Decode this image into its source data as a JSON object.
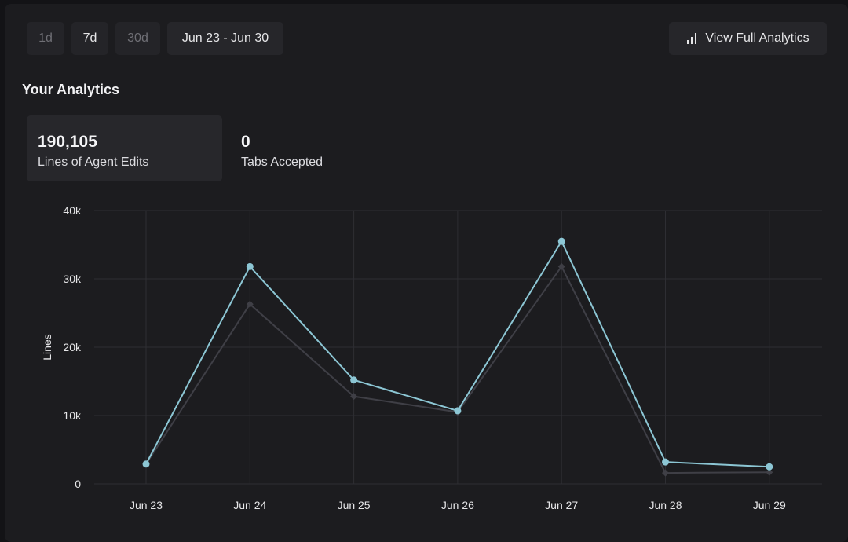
{
  "toolbar": {
    "ranges": [
      {
        "label": "1d",
        "active": false
      },
      {
        "label": "7d",
        "active": true
      },
      {
        "label": "30d",
        "active": false
      }
    ],
    "date_range": "Jun 23 - Jun 30",
    "full_analytics_label": "View Full Analytics",
    "full_analytics_icon": "bar-chart-icon"
  },
  "section_title": "Your Analytics",
  "stats": [
    {
      "value": "190,105",
      "label": "Lines of Agent Edits",
      "selected": true
    },
    {
      "value": "0",
      "label": "Tabs Accepted",
      "selected": false
    }
  ],
  "colors": {
    "primary_series": "#8cc6d4",
    "secondary_series": "#3f3f46",
    "grid": "#2e2e33"
  },
  "chart_data": {
    "type": "line",
    "title": "",
    "xlabel": "",
    "ylabel": "Lines",
    "categories": [
      "Jun 23",
      "Jun 24",
      "Jun 25",
      "Jun 26",
      "Jun 27",
      "Jun 28",
      "Jun 29"
    ],
    "ylim": [
      0,
      40000
    ],
    "yticks": [
      0,
      10000,
      20000,
      30000,
      40000
    ],
    "ytick_labels": [
      "0",
      "10k",
      "20k",
      "30k",
      "40k"
    ],
    "grid": true,
    "series": [
      {
        "values": [
          2900,
          31800,
          15200,
          10700,
          35500,
          3200,
          2500
        ]
      },
      {
        "values": [
          2900,
          26300,
          12800,
          10500,
          31800,
          1600,
          1700
        ]
      }
    ]
  }
}
